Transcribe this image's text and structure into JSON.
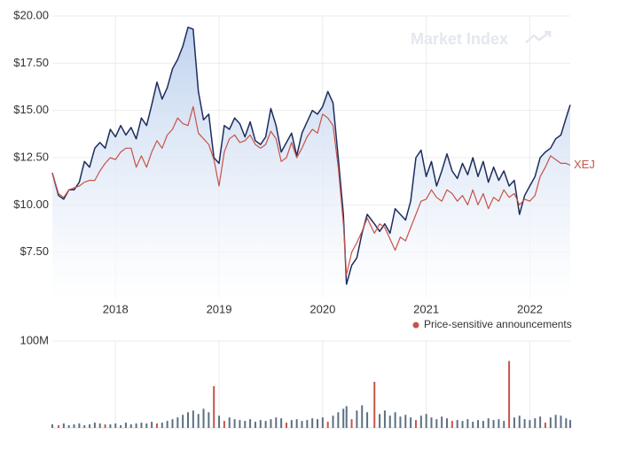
{
  "chart_data": [
    {
      "type": "line",
      "watermark": "Market Index",
      "x": [
        2017.39,
        2017.45,
        2017.5,
        2017.55,
        2017.6,
        2017.65,
        2017.7,
        2017.75,
        2017.8,
        2017.85,
        2017.9,
        2017.95,
        2018.0,
        2018.05,
        2018.1,
        2018.15,
        2018.2,
        2018.25,
        2018.3,
        2018.35,
        2018.4,
        2018.45,
        2018.5,
        2018.55,
        2018.6,
        2018.65,
        2018.7,
        2018.75,
        2018.8,
        2018.85,
        2018.9,
        2018.95,
        2019.0,
        2019.05,
        2019.1,
        2019.15,
        2019.2,
        2019.25,
        2019.3,
        2019.35,
        2019.4,
        2019.45,
        2019.5,
        2019.55,
        2019.6,
        2019.65,
        2019.7,
        2019.75,
        2019.8,
        2019.85,
        2019.9,
        2019.95,
        2020.0,
        2020.05,
        2020.1,
        2020.15,
        2020.2,
        2020.23,
        2020.28,
        2020.33,
        2020.38,
        2020.43,
        2020.5,
        2020.55,
        2020.6,
        2020.65,
        2020.7,
        2020.75,
        2020.8,
        2020.85,
        2020.9,
        2020.95,
        2021.0,
        2021.05,
        2021.1,
        2021.15,
        2021.2,
        2021.25,
        2021.3,
        2021.35,
        2021.4,
        2021.45,
        2021.5,
        2021.55,
        2021.6,
        2021.65,
        2021.7,
        2021.75,
        2021.8,
        2021.85,
        2021.9,
        2021.95,
        2022.0,
        2022.05,
        2022.1,
        2022.15,
        2022.2,
        2022.25,
        2022.3,
        2022.35,
        2022.39
      ],
      "series": [
        {
          "color": "#1d2d5c",
          "values": [
            11.7,
            10.5,
            10.3,
            10.8,
            10.8,
            11.2,
            12.3,
            12.0,
            13.0,
            13.3,
            13.0,
            14.0,
            13.6,
            14.2,
            13.7,
            14.1,
            13.5,
            14.6,
            14.2,
            15.3,
            16.5,
            15.6,
            16.2,
            17.2,
            17.7,
            18.4,
            19.4,
            19.3,
            16.0,
            14.5,
            14.8,
            12.5,
            12.2,
            14.2,
            14.0,
            14.6,
            14.3,
            13.6,
            14.4,
            13.4,
            13.2,
            13.6,
            15.1,
            14.2,
            12.8,
            13.3,
            13.8,
            12.6,
            13.8,
            14.4,
            15.0,
            14.8,
            15.2,
            16.0,
            15.4,
            12.5,
            9.5,
            5.8,
            6.8,
            7.2,
            8.5,
            9.5,
            9.0,
            8.6,
            9.0,
            8.5,
            9.8,
            9.5,
            9.2,
            10.2,
            12.5,
            12.9,
            11.5,
            12.3,
            11.0,
            11.8,
            12.7,
            11.8,
            11.4,
            12.2,
            11.6,
            12.5,
            11.5,
            12.3,
            11.2,
            12.0,
            11.3,
            11.8,
            11.0,
            11.3,
            9.5,
            10.5,
            11.0,
            11.5,
            12.5,
            12.8,
            13.0,
            13.5,
            13.7,
            14.6,
            15.3
          ]
        },
        {
          "name": "XEJ",
          "color": "#c8534a",
          "values": [
            11.7,
            10.6,
            10.4,
            10.8,
            10.9,
            11.0,
            11.2,
            11.3,
            11.3,
            11.8,
            12.2,
            12.5,
            12.4,
            12.8,
            13.0,
            13.0,
            12.0,
            12.6,
            12.0,
            12.8,
            13.4,
            13.0,
            13.7,
            14.0,
            14.6,
            14.3,
            14.2,
            15.2,
            13.8,
            13.5,
            13.2,
            12.4,
            11.0,
            12.8,
            13.5,
            13.7,
            13.3,
            13.4,
            13.7,
            13.2,
            13.0,
            13.2,
            13.9,
            13.5,
            12.3,
            12.5,
            13.3,
            12.5,
            13.0,
            13.6,
            14.0,
            13.8,
            14.8,
            14.6,
            14.2,
            12.0,
            9.0,
            6.3,
            7.5,
            8.0,
            8.6,
            9.3,
            8.5,
            9.0,
            8.8,
            8.2,
            7.6,
            8.3,
            8.1,
            8.8,
            9.5,
            10.2,
            10.3,
            10.8,
            10.4,
            10.2,
            10.8,
            10.6,
            10.2,
            10.5,
            10.0,
            10.8,
            10.0,
            10.6,
            9.8,
            10.4,
            10.2,
            10.8,
            10.4,
            10.6,
            10.0,
            10.3,
            10.2,
            10.5,
            11.5,
            12.0,
            12.6,
            12.4,
            12.2,
            12.2,
            12.1
          ]
        }
      ],
      "xlim": [
        2017.39,
        2022.39
      ],
      "xticks": [
        2018,
        2019,
        2020,
        2021,
        2022
      ],
      "ylim": [
        5,
        20
      ],
      "yticks": [
        {
          "value": 7.5,
          "label": "$7.50"
        },
        {
          "value": 10,
          "label": "$10.00"
        },
        {
          "value": 12.5,
          "label": "$12.50"
        },
        {
          "value": 15,
          "label": "$15.00"
        },
        {
          "value": 17.5,
          "label": "$17.50"
        },
        {
          "value": 20,
          "label": "$20.00"
        }
      ],
      "grid": true
    },
    {
      "type": "bar",
      "x": [
        2017.39,
        2017.45,
        2017.5,
        2017.55,
        2017.6,
        2017.65,
        2017.7,
        2017.75,
        2017.8,
        2017.85,
        2017.9,
        2017.95,
        2018.0,
        2018.05,
        2018.1,
        2018.15,
        2018.2,
        2018.25,
        2018.3,
        2018.35,
        2018.4,
        2018.45,
        2018.5,
        2018.55,
        2018.6,
        2018.65,
        2018.7,
        2018.75,
        2018.8,
        2018.85,
        2018.9,
        2018.95,
        2019.0,
        2019.05,
        2019.1,
        2019.15,
        2019.2,
        2019.25,
        2019.3,
        2019.35,
        2019.4,
        2019.45,
        2019.5,
        2019.55,
        2019.6,
        2019.65,
        2019.7,
        2019.75,
        2019.8,
        2019.85,
        2019.9,
        2019.95,
        2020.0,
        2020.05,
        2020.1,
        2020.15,
        2020.2,
        2020.23,
        2020.28,
        2020.33,
        2020.38,
        2020.43,
        2020.5,
        2020.55,
        2020.6,
        2020.65,
        2020.7,
        2020.75,
        2020.8,
        2020.85,
        2020.9,
        2020.95,
        2021.0,
        2021.05,
        2021.1,
        2021.15,
        2021.2,
        2021.25,
        2021.3,
        2021.35,
        2021.4,
        2021.45,
        2021.5,
        2021.55,
        2021.6,
        2021.65,
        2021.7,
        2021.75,
        2021.8,
        2021.85,
        2021.9,
        2021.95,
        2022.0,
        2022.05,
        2022.1,
        2022.15,
        2022.2,
        2022.25,
        2022.3,
        2022.35,
        2022.39
      ],
      "series": [
        {
          "color": "#5b7083",
          "values": [
            4000000,
            null,
            5000000,
            3000000,
            4000000,
            5000000,
            3000000,
            4000000,
            6000000,
            5000000,
            null,
            4000000,
            5000000,
            3000000,
            6000000,
            4000000,
            5000000,
            6000000,
            5000000,
            7000000,
            null,
            6000000,
            8000000,
            10000000,
            12000000,
            15000000,
            18000000,
            20000000,
            16000000,
            22000000,
            18000000,
            null,
            14000000,
            null,
            12000000,
            10000000,
            9000000,
            8000000,
            10000000,
            7000000,
            9000000,
            8000000,
            10000000,
            12000000,
            11000000,
            null,
            9000000,
            10000000,
            8000000,
            9000000,
            11000000,
            10000000,
            12000000,
            null,
            14000000,
            18000000,
            22000000,
            25000000,
            null,
            20000000,
            26000000,
            18000000,
            null,
            16000000,
            20000000,
            14000000,
            18000000,
            13000000,
            15000000,
            12000000,
            null,
            14000000,
            16000000,
            12000000,
            10000000,
            13000000,
            11000000,
            null,
            9000000,
            8000000,
            10000000,
            7000000,
            9000000,
            8000000,
            11000000,
            9000000,
            10000000,
            8000000,
            null,
            12000000,
            14000000,
            10000000,
            9000000,
            11000000,
            13000000,
            null,
            12000000,
            15000000,
            14000000,
            11000000,
            9000000
          ]
        },
        {
          "name": "Price-sensitive announcements",
          "color": "#c8534a",
          "values": [
            null,
            3000000,
            null,
            null,
            null,
            null,
            null,
            null,
            null,
            null,
            4000000,
            null,
            null,
            null,
            null,
            null,
            null,
            null,
            null,
            null,
            5000000,
            null,
            null,
            null,
            null,
            null,
            null,
            null,
            null,
            null,
            null,
            48000000,
            null,
            8000000,
            null,
            null,
            null,
            null,
            null,
            null,
            null,
            null,
            null,
            null,
            null,
            6000000,
            null,
            null,
            null,
            null,
            null,
            null,
            null,
            7000000,
            null,
            null,
            null,
            null,
            10000000,
            null,
            null,
            null,
            53000000,
            null,
            null,
            null,
            null,
            null,
            null,
            null,
            9000000,
            null,
            null,
            null,
            null,
            null,
            null,
            8000000,
            null,
            null,
            null,
            null,
            null,
            null,
            null,
            null,
            null,
            null,
            77000000,
            null,
            null,
            null,
            null,
            null,
            null,
            6000000,
            null,
            null,
            null,
            null,
            null
          ]
        }
      ],
      "xlim": [
        2017.39,
        2022.39
      ],
      "ylim": [
        0,
        100000000
      ],
      "yticks": [
        {
          "value": 100000000,
          "label": "100M"
        }
      ]
    }
  ]
}
